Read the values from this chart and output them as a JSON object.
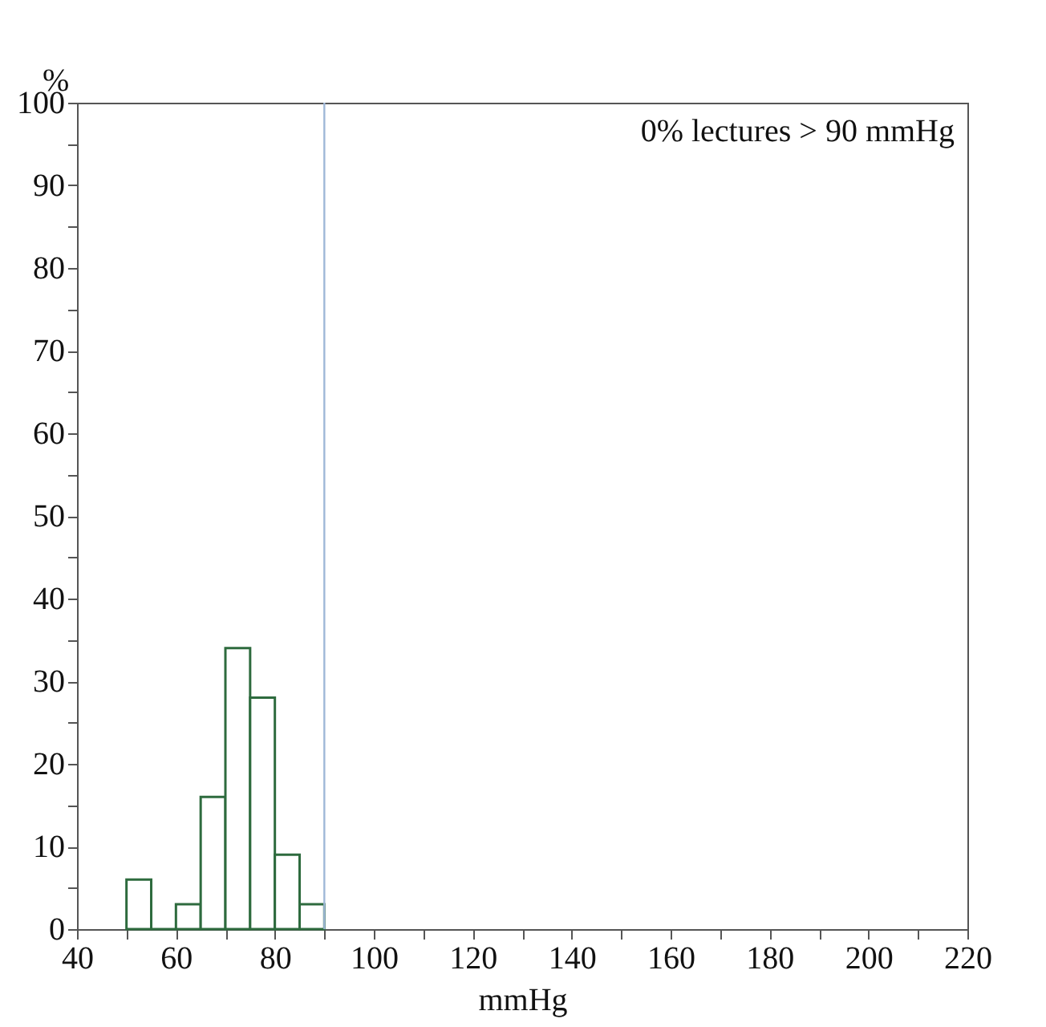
{
  "chart_data": {
    "type": "histogram",
    "xlabel": "mmHg",
    "ylabel": "%",
    "bins": [
      50,
      55,
      60,
      65,
      70,
      75,
      80,
      85,
      90
    ],
    "values": [
      6,
      0,
      3,
      16,
      34,
      28,
      9,
      3
    ],
    "color": "#2e6b3e",
    "xlim": [
      40,
      220
    ],
    "xticks": [
      40,
      {
        "value": 50,
        "label": null
      },
      60,
      {
        "value": 70,
        "label": null
      },
      80,
      {
        "value": 90,
        "label": null
      },
      100,
      {
        "value": 110,
        "label": null
      },
      120,
      {
        "value": 130,
        "label": null
      },
      140,
      {
        "value": 150,
        "label": null
      },
      160,
      {
        "value": 170,
        "label": null
      },
      180,
      {
        "value": 190,
        "label": null
      },
      200,
      {
        "value": 210,
        "label": null
      },
      220
    ],
    "ylim": [
      0,
      100
    ],
    "yticks": [
      0,
      {
        "value": 5,
        "label": null
      },
      10,
      {
        "value": 15,
        "label": null
      },
      20,
      {
        "value": 25,
        "label": null
      },
      30,
      {
        "value": 35,
        "label": null
      },
      40,
      {
        "value": 45,
        "label": null
      },
      50,
      {
        "value": 55,
        "label": null
      },
      60,
      {
        "value": 65,
        "label": null
      },
      70,
      {
        "value": 75,
        "label": null
      },
      80,
      {
        "value": 85,
        "label": null
      },
      90,
      {
        "value": 95,
        "label": null
      },
      100
    ],
    "ref_lines": [
      {
        "axis": "x",
        "value": 90,
        "color": "#9fb8d8"
      }
    ],
    "annotations": [
      "0% lectures > 90 mmHg"
    ],
    "grid": false
  }
}
